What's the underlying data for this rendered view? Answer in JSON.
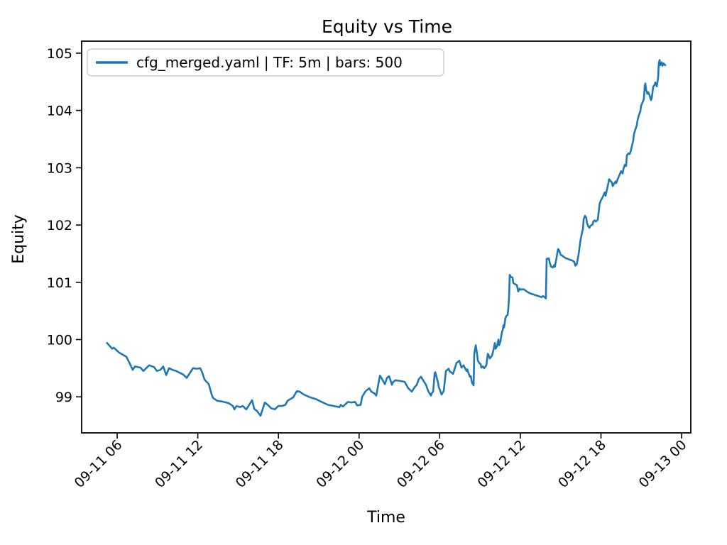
{
  "figure_title": "Equity vs Time",
  "colors": {
    "line": "#1f77b4",
    "axis": "#000000",
    "text": "#000000",
    "legend_border": "#cccccc",
    "background": "#ffffff"
  },
  "chart_data": {
    "type": "line",
    "title": "Equity vs Time",
    "xlabel": "Time",
    "ylabel": "Equity",
    "grid": false,
    "legend_position": "upper left",
    "x_unit": "hours since 09-11 00:00",
    "xlim_hours": [
      3.36,
      48.68
    ],
    "ylim": [
      98.37,
      105.21
    ],
    "y_ticks": [
      99,
      100,
      101,
      102,
      103,
      104,
      105
    ],
    "x_ticks": [
      {
        "hour": 6,
        "label": "09-11 06"
      },
      {
        "hour": 12,
        "label": "09-11 12"
      },
      {
        "hour": 18,
        "label": "09-11 18"
      },
      {
        "hour": 24,
        "label": "09-12 00"
      },
      {
        "hour": 30,
        "label": "09-12 06"
      },
      {
        "hour": 36,
        "label": "09-12 12"
      },
      {
        "hour": 42,
        "label": "09-12 18"
      },
      {
        "hour": 48,
        "label": "09-13 00"
      }
    ],
    "series": [
      {
        "name": "cfg_merged.yaml | TF: 5m | bars: 500",
        "color": "#1f77b4",
        "points": [
          [
            5.21,
            99.95
          ],
          [
            5.63,
            99.84
          ],
          [
            5.74,
            99.86
          ],
          [
            6.16,
            99.77
          ],
          [
            6.69,
            99.7
          ],
          [
            6.9,
            99.6
          ],
          [
            7.16,
            99.47
          ],
          [
            7.32,
            99.53
          ],
          [
            7.74,
            99.51
          ],
          [
            7.95,
            99.45
          ],
          [
            8.38,
            99.55
          ],
          [
            8.75,
            99.52
          ],
          [
            8.96,
            99.45
          ],
          [
            9.22,
            99.47
          ],
          [
            9.43,
            99.53
          ],
          [
            9.65,
            99.38
          ],
          [
            9.86,
            99.5
          ],
          [
            10.12,
            99.47
          ],
          [
            10.39,
            99.45
          ],
          [
            10.91,
            99.39
          ],
          [
            11.18,
            99.33
          ],
          [
            11.65,
            99.5
          ],
          [
            11.92,
            99.49
          ],
          [
            12.18,
            99.5
          ],
          [
            12.34,
            99.42
          ],
          [
            12.5,
            99.3
          ],
          [
            12.82,
            99.22
          ],
          [
            13.03,
            99.04
          ],
          [
            13.13,
            98.98
          ],
          [
            13.45,
            98.93
          ],
          [
            13.77,
            98.92
          ],
          [
            14.29,
            98.89
          ],
          [
            14.61,
            98.84
          ],
          [
            14.72,
            98.78
          ],
          [
            14.88,
            98.84
          ],
          [
            15.14,
            98.82
          ],
          [
            15.35,
            98.84
          ],
          [
            15.61,
            98.78
          ],
          [
            16.04,
            98.94
          ],
          [
            16.2,
            98.79
          ],
          [
            16.41,
            98.75
          ],
          [
            16.67,
            98.67
          ],
          [
            16.99,
            98.9
          ],
          [
            17.25,
            98.85
          ],
          [
            17.46,
            98.8
          ],
          [
            17.73,
            98.78
          ],
          [
            17.99,
            98.84
          ],
          [
            18.26,
            98.84
          ],
          [
            18.52,
            98.86
          ],
          [
            18.68,
            98.93
          ],
          [
            19.1,
            98.99
          ],
          [
            19.37,
            99.1
          ],
          [
            19.58,
            99.09
          ],
          [
            19.89,
            99.04
          ],
          [
            20.37,
            98.99
          ],
          [
            20.79,
            98.96
          ],
          [
            21.22,
            98.91
          ],
          [
            21.69,
            98.86
          ],
          [
            22.11,
            98.84
          ],
          [
            22.54,
            98.82
          ],
          [
            22.64,
            98.86
          ],
          [
            22.8,
            98.83
          ],
          [
            23.17,
            98.91
          ],
          [
            23.43,
            98.9
          ],
          [
            23.7,
            98.91
          ],
          [
            23.86,
            98.85
          ],
          [
            24.12,
            98.86
          ],
          [
            24.23,
            99.0
          ],
          [
            24.49,
            99.1
          ],
          [
            24.76,
            99.15
          ],
          [
            24.91,
            99.09
          ],
          [
            25.13,
            99.06
          ],
          [
            25.28,
            99.02
          ],
          [
            25.55,
            99.37
          ],
          [
            25.71,
            99.31
          ],
          [
            25.92,
            99.22
          ],
          [
            26.08,
            99.33
          ],
          [
            26.23,
            99.36
          ],
          [
            26.45,
            99.21
          ],
          [
            26.5,
            99.25
          ],
          [
            26.71,
            99.29
          ],
          [
            26.97,
            99.28
          ],
          [
            27.24,
            99.27
          ],
          [
            27.4,
            99.26
          ],
          [
            27.66,
            99.15
          ],
          [
            27.93,
            99.09
          ],
          [
            28.08,
            99.15
          ],
          [
            28.29,
            99.21
          ],
          [
            28.45,
            99.31
          ],
          [
            28.61,
            99.35
          ],
          [
            28.82,
            99.27
          ],
          [
            28.98,
            99.21
          ],
          [
            29.14,
            99.1
          ],
          [
            29.35,
            99.02
          ],
          [
            29.4,
            99.06
          ],
          [
            29.51,
            99.09
          ],
          [
            29.62,
            99.41
          ],
          [
            29.67,
            99.43
          ],
          [
            29.88,
            99.24
          ],
          [
            29.93,
            99.17
          ],
          [
            30.14,
            99.04
          ],
          [
            30.3,
            99.1
          ],
          [
            30.46,
            99.45
          ],
          [
            30.67,
            99.49
          ],
          [
            30.72,
            99.45
          ],
          [
            30.99,
            99.4
          ],
          [
            31.25,
            99.59
          ],
          [
            31.46,
            99.63
          ],
          [
            31.62,
            99.51
          ],
          [
            31.78,
            99.55
          ],
          [
            31.99,
            99.45
          ],
          [
            32.04,
            99.48
          ],
          [
            32.25,
            99.35
          ],
          [
            32.31,
            99.36
          ],
          [
            32.41,
            99.24
          ],
          [
            32.52,
            99.2
          ],
          [
            32.57,
            99.75
          ],
          [
            32.68,
            99.9
          ],
          [
            32.78,
            99.75
          ],
          [
            32.84,
            99.63
          ],
          [
            32.94,
            99.59
          ],
          [
            33.05,
            99.57
          ],
          [
            33.1,
            99.51
          ],
          [
            33.21,
            99.53
          ],
          [
            33.31,
            99.5
          ],
          [
            33.47,
            99.55
          ],
          [
            33.58,
            99.75
          ],
          [
            33.63,
            99.73
          ],
          [
            33.73,
            99.67
          ],
          [
            33.89,
            99.72
          ],
          [
            34.0,
            99.82
          ],
          [
            34.1,
            99.94
          ],
          [
            34.16,
            99.84
          ],
          [
            34.26,
            99.88
          ],
          [
            34.37,
            100.0
          ],
          [
            34.42,
            99.9
          ],
          [
            34.52,
            99.97
          ],
          [
            34.63,
            100.13
          ],
          [
            34.68,
            100.16
          ],
          [
            34.74,
            100.25
          ],
          [
            34.79,
            100.21
          ],
          [
            34.89,
            100.37
          ],
          [
            34.95,
            100.41
          ],
          [
            35.05,
            100.43
          ],
          [
            35.1,
            100.53
          ],
          [
            35.16,
            100.74
          ],
          [
            35.21,
            101.13
          ],
          [
            35.31,
            101.09
          ],
          [
            35.42,
            101.08
          ],
          [
            35.47,
            100.99
          ],
          [
            35.58,
            100.97
          ],
          [
            35.74,
            100.95
          ],
          [
            35.84,
            100.84
          ],
          [
            35.95,
            100.89
          ],
          [
            36.0,
            100.87
          ],
          [
            36.21,
            100.88
          ],
          [
            36.37,
            100.86
          ],
          [
            36.53,
            100.83
          ],
          [
            36.79,
            100.8
          ],
          [
            37.06,
            100.78
          ],
          [
            37.32,
            100.76
          ],
          [
            37.58,
            100.74
          ],
          [
            37.69,
            100.76
          ],
          [
            37.85,
            100.73
          ],
          [
            37.9,
            100.72
          ],
          [
            37.96,
            101.41
          ],
          [
            38.11,
            101.42
          ],
          [
            38.19,
            101.34
          ],
          [
            38.29,
            101.27
          ],
          [
            38.43,
            101.26
          ],
          [
            38.52,
            101.3
          ],
          [
            38.57,
            101.27
          ],
          [
            38.76,
            101.52
          ],
          [
            38.81,
            101.58
          ],
          [
            38.9,
            101.55
          ],
          [
            39.0,
            101.48
          ],
          [
            39.14,
            101.46
          ],
          [
            39.24,
            101.44
          ],
          [
            39.38,
            101.42
          ],
          [
            39.52,
            101.41
          ],
          [
            39.71,
            101.39
          ],
          [
            39.86,
            101.38
          ],
          [
            40.0,
            101.36
          ],
          [
            40.09,
            101.29
          ],
          [
            40.19,
            101.31
          ],
          [
            40.33,
            101.48
          ],
          [
            40.47,
            101.73
          ],
          [
            40.57,
            101.85
          ],
          [
            40.66,
            101.94
          ],
          [
            40.71,
            102.1
          ],
          [
            40.81,
            102.16
          ],
          [
            40.9,
            102.13
          ],
          [
            40.95,
            102.04
          ],
          [
            41.04,
            101.98
          ],
          [
            41.14,
            101.95
          ],
          [
            41.19,
            101.98
          ],
          [
            41.38,
            102.01
          ],
          [
            41.42,
            102.06
          ],
          [
            41.52,
            102.08
          ],
          [
            41.61,
            102.06
          ],
          [
            41.76,
            102.09
          ],
          [
            41.9,
            102.37
          ],
          [
            41.99,
            102.43
          ],
          [
            42.09,
            102.47
          ],
          [
            42.28,
            102.57
          ],
          [
            42.34,
            102.51
          ],
          [
            42.55,
            102.73
          ],
          [
            42.6,
            102.8
          ],
          [
            42.81,
            102.74
          ],
          [
            42.87,
            102.68
          ],
          [
            43.08,
            102.76
          ],
          [
            43.13,
            102.73
          ],
          [
            43.24,
            102.8
          ],
          [
            43.39,
            102.88
          ],
          [
            43.5,
            102.94
          ],
          [
            43.61,
            102.9
          ],
          [
            43.66,
            102.97
          ],
          [
            43.77,
            103.05
          ],
          [
            43.87,
            103.03
          ],
          [
            43.92,
            103.21
          ],
          [
            44.03,
            103.25
          ],
          [
            44.13,
            103.24
          ],
          [
            44.19,
            103.27
          ],
          [
            44.29,
            103.37
          ],
          [
            44.4,
            103.48
          ],
          [
            44.45,
            103.58
          ],
          [
            44.56,
            103.67
          ],
          [
            44.66,
            103.74
          ],
          [
            44.72,
            103.83
          ],
          [
            44.82,
            103.92
          ],
          [
            44.93,
            103.99
          ],
          [
            44.98,
            104.08
          ],
          [
            45.09,
            104.14
          ],
          [
            45.19,
            104.2
          ],
          [
            45.25,
            104.42
          ],
          [
            45.3,
            104.47
          ],
          [
            45.35,
            104.36
          ],
          [
            45.46,
            104.29
          ],
          [
            45.51,
            104.32
          ],
          [
            45.62,
            104.26
          ],
          [
            45.72,
            104.18
          ],
          [
            45.78,
            104.22
          ],
          [
            45.88,
            104.41
          ],
          [
            45.99,
            104.45
          ],
          [
            46.04,
            104.49
          ],
          [
            46.15,
            104.42
          ],
          [
            46.25,
            104.57
          ],
          [
            46.3,
            104.82
          ],
          [
            46.36,
            104.88
          ],
          [
            46.41,
            104.79
          ],
          [
            46.52,
            104.84
          ],
          [
            46.57,
            104.78
          ],
          [
            46.67,
            104.82
          ],
          [
            46.78,
            104.79
          ],
          [
            46.83,
            104.8
          ]
        ]
      }
    ]
  }
}
